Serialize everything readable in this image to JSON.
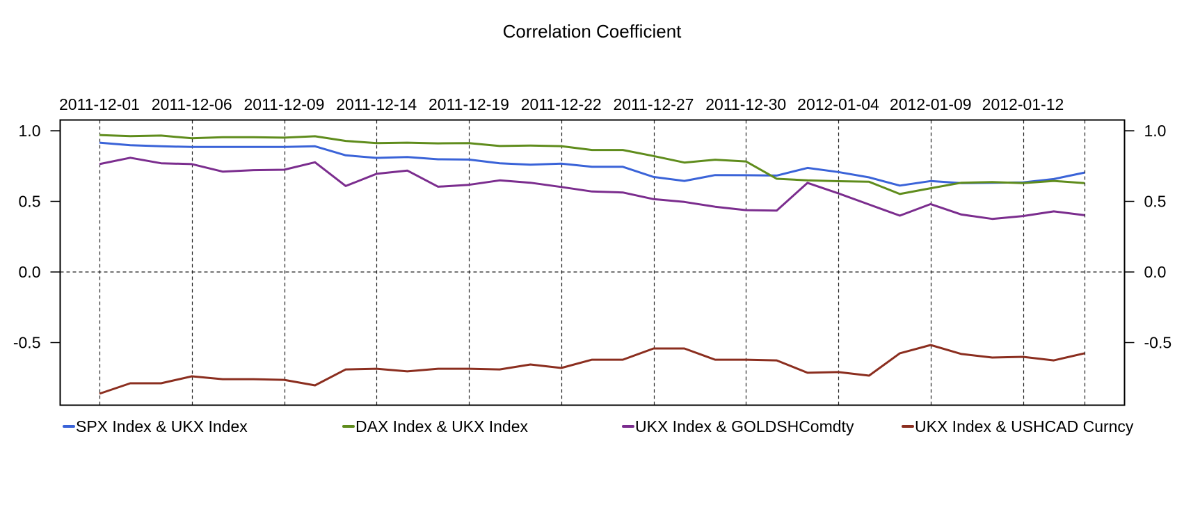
{
  "chart_data": {
    "type": "line",
    "title": "Correlation Coefficient",
    "xlabel": "",
    "ylabel": "",
    "ylim": [
      -0.94,
      1.08
    ],
    "grid": "dashed vertical lines at labeled dates and horizontal dashed line at 0.0",
    "legend_position": "bottom",
    "y_ticks": [
      1.0,
      0.5,
      0.0,
      -0.5
    ],
    "y_tick_labels": [
      "1.0",
      "0.5",
      "0.0",
      "-0.5"
    ],
    "y_axes": [
      "left",
      "right"
    ],
    "x_axis_position": "top",
    "x_count": 33,
    "x_tick_indices": [
      0,
      3,
      6,
      9,
      12,
      15,
      18,
      21,
      24,
      27,
      30
    ],
    "x_tick_labels": [
      "2011-12-01",
      "2011-12-06",
      "2011-12-09",
      "2011-12-14",
      "2011-12-19",
      "2011-12-22",
      "2011-12-27",
      "2011-12-30",
      "2012-01-04",
      "2012-01-09",
      "2012-01-12"
    ],
    "x_gridline_indices": [
      0,
      3,
      6,
      9,
      12,
      15,
      18,
      21,
      24,
      27,
      30,
      32
    ],
    "series": [
      {
        "name": "SPX Index & UKX Index",
        "color": "#3a63d8",
        "values": [
          0.916,
          0.898,
          0.89,
          0.885,
          0.885,
          0.885,
          0.885,
          0.89,
          0.826,
          0.808,
          0.814,
          0.798,
          0.796,
          0.77,
          0.76,
          0.767,
          0.745,
          0.745,
          0.673,
          0.645,
          0.686,
          0.685,
          0.683,
          0.737,
          0.708,
          0.67,
          0.612,
          0.644,
          0.629,
          0.632,
          0.634,
          0.658,
          0.704
        ]
      },
      {
        "name": "DAX Index & UKX Index",
        "color": "#5f8c1c",
        "values": [
          0.97,
          0.962,
          0.966,
          0.947,
          0.954,
          0.954,
          0.951,
          0.961,
          0.928,
          0.913,
          0.916,
          0.911,
          0.913,
          0.892,
          0.895,
          0.891,
          0.864,
          0.864,
          0.821,
          0.775,
          0.795,
          0.783,
          0.66,
          0.649,
          0.643,
          0.639,
          0.552,
          0.593,
          0.632,
          0.637,
          0.629,
          0.645,
          0.629
        ]
      },
      {
        "name": "UKX Index & GOLDSHComdty",
        "color": "#7b2d8e",
        "values": [
          0.764,
          0.809,
          0.77,
          0.764,
          0.711,
          0.721,
          0.724,
          0.777,
          0.609,
          0.695,
          0.718,
          0.604,
          0.617,
          0.649,
          0.632,
          0.602,
          0.57,
          0.563,
          0.516,
          0.496,
          0.462,
          0.438,
          0.435,
          0.631,
          0.557,
          0.478,
          0.399,
          0.481,
          0.407,
          0.376,
          0.396,
          0.429,
          0.402
        ]
      },
      {
        "name": "UKX Index & USHCAD Curncy",
        "color": "#8b2e1f",
        "values": [
          -0.862,
          -0.788,
          -0.788,
          -0.739,
          -0.759,
          -0.759,
          -0.764,
          -0.803,
          -0.69,
          -0.685,
          -0.704,
          -0.685,
          -0.685,
          -0.69,
          -0.655,
          -0.68,
          -0.621,
          -0.621,
          -0.542,
          -0.542,
          -0.621,
          -0.621,
          -0.626,
          -0.714,
          -0.709,
          -0.734,
          -0.576,
          -0.517,
          -0.581,
          -0.606,
          -0.601,
          -0.626,
          -0.576
        ]
      }
    ]
  }
}
